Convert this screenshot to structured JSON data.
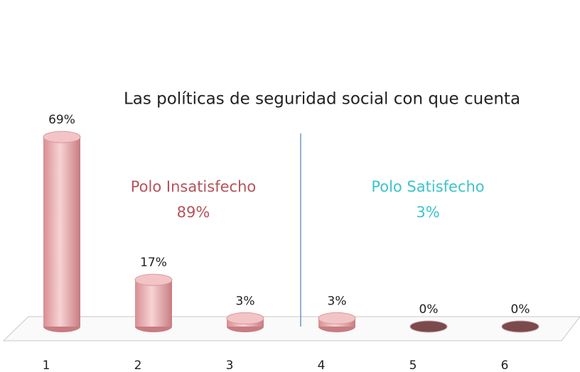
{
  "chart_data": {
    "type": "bar3d",
    "title": "Las políticas de seguridad social con que cuenta",
    "categories": [
      "1",
      "2",
      "3",
      "4",
      "5",
      "6"
    ],
    "values": [
      69,
      17,
      3,
      3,
      0,
      0
    ],
    "value_labels": [
      "69%",
      "17%",
      "3%",
      "3%",
      "0%",
      "0%"
    ],
    "color": "#e8a9ab",
    "annotations": [
      {
        "text": "Polo Insatisfecho",
        "detail": "89%",
        "color": "#b5535a"
      },
      {
        "text": "Polo Satisfecho",
        "detail": "3%",
        "color": "#3ec3cc"
      }
    ]
  }
}
